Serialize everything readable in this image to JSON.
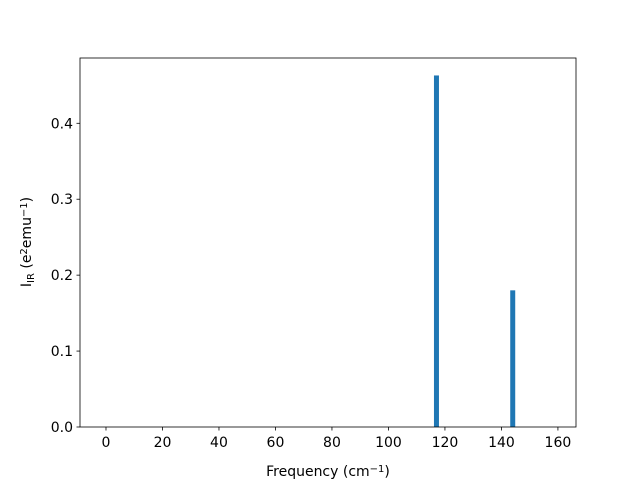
{
  "chart_data": {
    "type": "bar",
    "xlabel": [
      {
        "text": "Frequency (cm"
      },
      {
        "text": "−1",
        "style": "sup"
      },
      {
        "text": ")"
      }
    ],
    "ylabel": [
      {
        "text": "I"
      },
      {
        "text": "IR",
        "style": "sub"
      },
      {
        "text": " (e"
      },
      {
        "text": "2",
        "style": "sup"
      },
      {
        "text": "emu"
      },
      {
        "text": "−1",
        "style": "sup"
      },
      {
        "text": ")"
      }
    ],
    "x": [
      117,
      144
    ],
    "values": [
      0.463,
      0.18
    ],
    "color": "#1f77b4",
    "xlim": [
      -9.2,
      166.4
    ],
    "xticks": [
      0,
      20,
      40,
      60,
      80,
      100,
      120,
      140,
      160
    ],
    "ylim": [
      0,
      0.486
    ],
    "yticks": [
      {
        "value": 0,
        "label": "0.0"
      },
      0.1,
      0.2,
      0.3,
      0.4
    ],
    "grid": false
  }
}
